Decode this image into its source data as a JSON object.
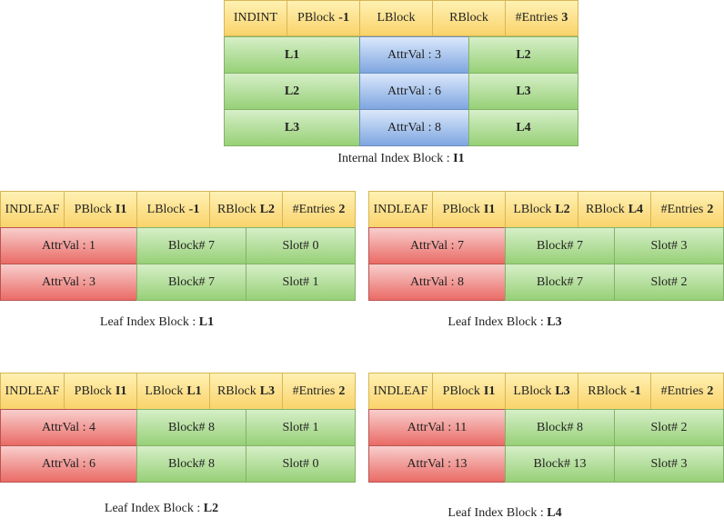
{
  "internal": {
    "header": [
      {
        "text": "INDINT",
        "bold": ""
      },
      {
        "text": "PBlock",
        "bold": "-1"
      },
      {
        "text": "LBlock",
        "bold": ""
      },
      {
        "text": "RBlock",
        "bold": ""
      },
      {
        "text": "#Entries",
        "bold": "3"
      }
    ],
    "rows": [
      {
        "left": "L1",
        "val": "AttrVal : 3",
        "right": "L2"
      },
      {
        "left": "L2",
        "val": "AttrVal : 6",
        "right": "L3"
      },
      {
        "left": "L3",
        "val": "AttrVal : 8",
        "right": "L4"
      }
    ],
    "caption": {
      "text": "Internal Index Block : ",
      "bold": "I1"
    }
  },
  "leaves": [
    {
      "id": "L1",
      "header": [
        {
          "text": "INDLEAF",
          "bold": ""
        },
        {
          "text": "PBlock",
          "bold": "I1"
        },
        {
          "text": "LBlock",
          "bold": "-1"
        },
        {
          "text": "RBlock",
          "bold": "L2"
        },
        {
          "text": "#Entries",
          "bold": "2"
        }
      ],
      "rows": [
        {
          "attr": "AttrVal : 1",
          "block": "Block# 7",
          "slot": "Slot# 0"
        },
        {
          "attr": "AttrVal : 3",
          "block": "Block# 7",
          "slot": "Slot# 1"
        }
      ],
      "caption": {
        "text": "Leaf Index Block : ",
        "bold": "L1"
      }
    },
    {
      "id": "L3",
      "header": [
        {
          "text": "INDLEAF",
          "bold": ""
        },
        {
          "text": "PBlock",
          "bold": "I1"
        },
        {
          "text": "LBlock",
          "bold": "L2"
        },
        {
          "text": "RBlock",
          "bold": "L4"
        },
        {
          "text": "#Entries",
          "bold": "2"
        }
      ],
      "rows": [
        {
          "attr": "AttrVal : 7",
          "block": "Block# 7",
          "slot": "Slot# 3"
        },
        {
          "attr": "AttrVal : 8",
          "block": "Block# 7",
          "slot": "Slot# 2"
        }
      ],
      "caption": {
        "text": "Leaf Index Block : ",
        "bold": "L3"
      }
    },
    {
      "id": "L2",
      "header": [
        {
          "text": "INDLEAF",
          "bold": ""
        },
        {
          "text": "PBlock",
          "bold": "I1"
        },
        {
          "text": "LBlock",
          "bold": "L1"
        },
        {
          "text": "RBlock",
          "bold": "L3"
        },
        {
          "text": "#Entries",
          "bold": "2"
        }
      ],
      "rows": [
        {
          "attr": "AttrVal : 4",
          "block": "Block# 8",
          "slot": "Slot# 1"
        },
        {
          "attr": "AttrVal : 6",
          "block": "Block# 8",
          "slot": "Slot# 0"
        }
      ],
      "caption": {
        "text": "Leaf Index Block : ",
        "bold": "L2"
      }
    },
    {
      "id": "L4",
      "header": [
        {
          "text": "INDLEAF",
          "bold": ""
        },
        {
          "text": "PBlock",
          "bold": "I1"
        },
        {
          "text": "LBlock",
          "bold": "L3"
        },
        {
          "text": "RBlock",
          "bold": "-1"
        },
        {
          "text": "#Entries",
          "bold": "2"
        }
      ],
      "rows": [
        {
          "attr": "AttrVal : 11",
          "block": "Block# 8",
          "slot": "Slot# 2"
        },
        {
          "attr": "AttrVal : 13",
          "block": "Block# 13",
          "slot": "Slot# 3"
        }
      ],
      "caption": {
        "text": "Leaf Index Block : ",
        "bold": "L4"
      }
    }
  ]
}
